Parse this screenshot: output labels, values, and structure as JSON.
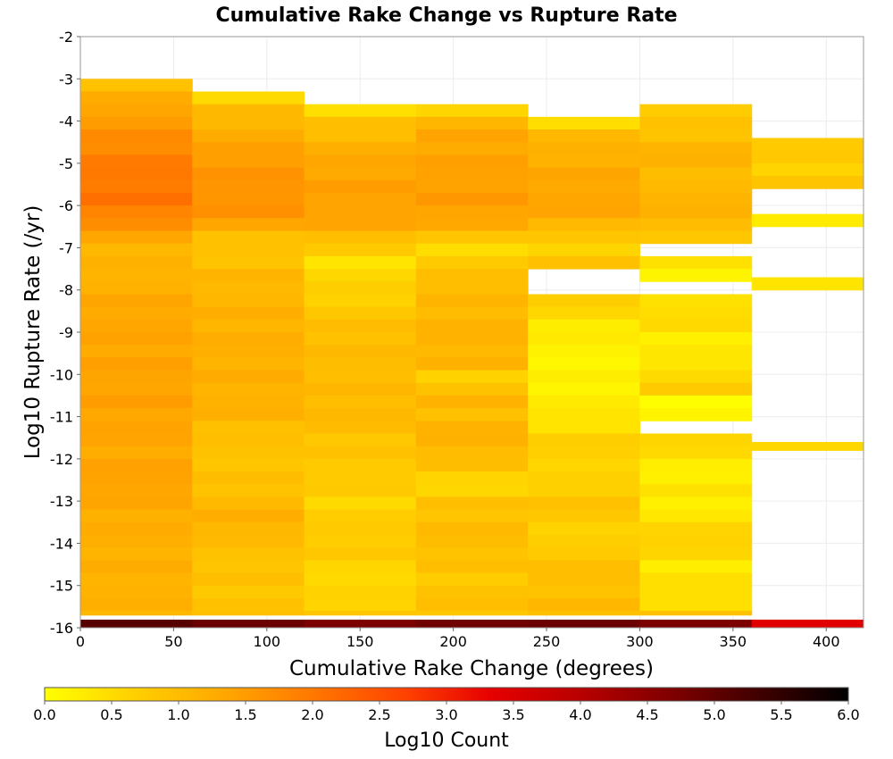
{
  "chart_data": {
    "type": "heatmap",
    "title": "Cumulative Rake Change vs Rupture Rate",
    "xlabel": "Cumulative Rake Change (degrees)",
    "ylabel": "Log10 Rupture Rate (/yr)",
    "xlim": [
      0,
      420
    ],
    "ylim": [
      -16,
      -2
    ],
    "x_ticks": [
      0,
      50,
      100,
      150,
      200,
      250,
      300,
      350,
      400
    ],
    "y_ticks": [
      -2,
      -3,
      -4,
      -5,
      -6,
      -7,
      -8,
      -9,
      -10,
      -11,
      -12,
      -13,
      -14,
      -15,
      -16
    ],
    "colorbar": {
      "label": "Log10 Count",
      "range": [
        0,
        6
      ],
      "ticks": [
        "0.0",
        "0.5",
        "1.0",
        "1.5",
        "2.0",
        "2.5",
        "3.0",
        "3.5",
        "4.0",
        "4.5",
        "5.0",
        "5.5",
        "6.0"
      ],
      "colormap": [
        "#ffff00",
        "#ffd000",
        "#ffa800",
        "#ff7800",
        "#ff4400",
        "#e60000",
        "#b80000",
        "#800000",
        "#400000",
        "#000000"
      ]
    },
    "bin_width_x": 60,
    "bin_height_y": 0.3,
    "grid": true,
    "columns": [
      {
        "x_start": 0,
        "y_top": -3.0,
        "y_bottom": -15.7,
        "profile": [
          [
            -3.0,
            0.9
          ],
          [
            -3.6,
            1.3
          ],
          [
            -4.2,
            1.6
          ],
          [
            -5.0,
            1.95
          ],
          [
            -5.8,
            2.05
          ],
          [
            -6.5,
            1.7
          ],
          [
            -6.8,
            1.2
          ],
          [
            -7.5,
            1.1
          ],
          [
            -8.5,
            1.35
          ],
          [
            -9.0,
            1.35
          ],
          [
            -10.0,
            1.4
          ],
          [
            -11.0,
            1.4
          ],
          [
            -12.0,
            1.3
          ],
          [
            -12.5,
            1.45
          ],
          [
            -13.0,
            1.3
          ],
          [
            -14.0,
            1.2
          ],
          [
            -15.7,
            1.15
          ]
        ]
      },
      {
        "x_start": 60,
        "y_top": -3.3,
        "y_bottom": -15.7,
        "profile": [
          [
            -3.3,
            0.3
          ],
          [
            -3.6,
            0.9
          ],
          [
            -4.2,
            1.2
          ],
          [
            -5.0,
            1.55
          ],
          [
            -6.0,
            1.65
          ],
          [
            -6.5,
            1.4
          ],
          [
            -6.8,
            0.8
          ],
          [
            -7.5,
            1.0
          ],
          [
            -8.0,
            1.1
          ],
          [
            -9.0,
            1.2
          ],
          [
            -10.0,
            1.2
          ],
          [
            -11.0,
            1.15
          ],
          [
            -11.5,
            0.9
          ],
          [
            -12.5,
            0.9
          ],
          [
            -13.0,
            1.0
          ],
          [
            -13.5,
            1.25
          ],
          [
            -14.0,
            0.95
          ],
          [
            -15.0,
            0.85
          ],
          [
            -15.7,
            0.9
          ]
        ]
      },
      {
        "x_start": 120,
        "y_top": -3.6,
        "y_bottom": -15.7,
        "profile": [
          [
            -3.6,
            0.2
          ],
          [
            -3.9,
            0.8
          ],
          [
            -4.5,
            1.1
          ],
          [
            -5.0,
            1.35
          ],
          [
            -6.0,
            1.45
          ],
          [
            -6.5,
            1.3
          ],
          [
            -6.8,
            1.0
          ],
          [
            -7.4,
            0.3
          ],
          [
            -7.7,
            0.7
          ],
          [
            -8.0,
            0.6
          ],
          [
            -8.5,
            0.8
          ],
          [
            -9.0,
            1.0
          ],
          [
            -10.0,
            1.0
          ],
          [
            -11.0,
            1.05
          ],
          [
            -11.5,
            0.9
          ],
          [
            -12.0,
            0.8
          ],
          [
            -12.5,
            0.8
          ],
          [
            -13.0,
            0.6
          ],
          [
            -13.5,
            0.7
          ],
          [
            -14.0,
            0.8
          ],
          [
            -15.0,
            0.5
          ],
          [
            -15.7,
            0.8
          ]
        ]
      },
      {
        "x_start": 180,
        "y_top": -3.6,
        "y_bottom": -15.7,
        "profile": [
          [
            -3.6,
            0.4
          ],
          [
            -3.9,
            0.9
          ],
          [
            -4.2,
            1.3
          ],
          [
            -5.0,
            1.4
          ],
          [
            -6.0,
            1.5
          ],
          [
            -6.5,
            1.3
          ],
          [
            -6.8,
            0.7
          ],
          [
            -7.2,
            0.5
          ],
          [
            -7.6,
            1.0
          ],
          [
            -8.0,
            1.0
          ],
          [
            -9.0,
            1.15
          ],
          [
            -9.8,
            1.1
          ],
          [
            -10.1,
            0.6
          ],
          [
            -10.5,
            1.1
          ],
          [
            -11.0,
            1.0
          ],
          [
            -11.5,
            1.2
          ],
          [
            -12.0,
            1.0
          ],
          [
            -12.7,
            0.5
          ],
          [
            -13.0,
            0.9
          ],
          [
            -14.0,
            1.0
          ],
          [
            -14.8,
            0.8
          ],
          [
            -15.3,
            0.9
          ],
          [
            -15.7,
            0.9
          ]
        ]
      },
      {
        "x_start": 240,
        "y_top": -3.9,
        "y_bottom": -15.7,
        "profile": [
          [
            -3.9,
            0.1
          ],
          [
            -4.2,
            1.0
          ],
          [
            -5.0,
            1.25
          ],
          [
            -6.0,
            1.4
          ],
          [
            -6.5,
            1.1
          ],
          [
            -7.0,
            0.5
          ],
          [
            -7.3,
            1.0
          ],
          [
            -7.6,
            null
          ],
          [
            -8.1,
            0.8
          ],
          [
            -8.7,
            0.4
          ],
          [
            -9.3,
            0.2
          ],
          [
            -10.0,
            0.15
          ],
          [
            -11.0,
            0.35
          ],
          [
            -11.5,
            0.6
          ],
          [
            -12.0,
            0.75
          ],
          [
            -12.3,
            0.5
          ],
          [
            -13.0,
            0.9
          ],
          [
            -14.0,
            0.6
          ],
          [
            -14.5,
            1.0
          ],
          [
            -15.0,
            0.85
          ],
          [
            -15.3,
            1.1
          ],
          [
            -15.7,
            0.9
          ]
        ]
      },
      {
        "x_start": 300,
        "y_top": -3.6,
        "y_bottom": -15.7,
        "profile": [
          [
            -3.6,
            0.7
          ],
          [
            -4.2,
            0.9
          ],
          [
            -5.0,
            1.2
          ],
          [
            -5.5,
            0.9
          ],
          [
            -6.0,
            1.3
          ],
          [
            -6.5,
            0.9
          ],
          [
            -6.8,
            null
          ],
          [
            -7.3,
            0.5
          ],
          [
            -7.6,
            0.2
          ],
          [
            -7.9,
            null
          ],
          [
            -8.1,
            0.7
          ],
          [
            -8.4,
            0.3
          ],
          [
            -8.7,
            0.6
          ],
          [
            -9.3,
            0.2
          ],
          [
            -10.0,
            0.5
          ],
          [
            -10.3,
            0.8
          ],
          [
            -10.6,
            0.1
          ],
          [
            -11.0,
            null
          ],
          [
            -11.5,
            0.7
          ],
          [
            -12.0,
            0.35
          ],
          [
            -12.5,
            0.2
          ],
          [
            -12.8,
            0.4
          ],
          [
            -13.3,
            0.2
          ],
          [
            -13.6,
            0.6
          ],
          [
            -14.0,
            0.7
          ],
          [
            -14.5,
            0.3
          ],
          [
            -15.0,
            0.5
          ],
          [
            -15.3,
            0.3
          ],
          [
            -15.5,
            0.6
          ],
          [
            -15.7,
            0.9
          ]
        ]
      },
      {
        "x_start": 360,
        "y_top": -4.4,
        "y_bottom": -11.8,
        "profile": [
          [
            -4.4,
            0.6
          ],
          [
            -4.7,
            0.9
          ],
          [
            -5.0,
            0.6
          ],
          [
            -5.3,
            0.8
          ],
          [
            -5.6,
            null
          ],
          [
            -6.1,
            0.2
          ],
          [
            -6.4,
            null
          ],
          [
            -7.6,
            0.3
          ],
          [
            -7.9,
            null
          ],
          [
            -11.5,
            0.5
          ],
          [
            -11.8,
            null
          ]
        ]
      }
    ],
    "bottom_row": {
      "y": -15.85,
      "values": [
        [
          0,
          5.1
        ],
        [
          60,
          4.9
        ],
        [
          120,
          4.7
        ],
        [
          180,
          4.85
        ],
        [
          240,
          4.9
        ],
        [
          300,
          4.7
        ],
        [
          360,
          3.4
        ]
      ]
    }
  }
}
